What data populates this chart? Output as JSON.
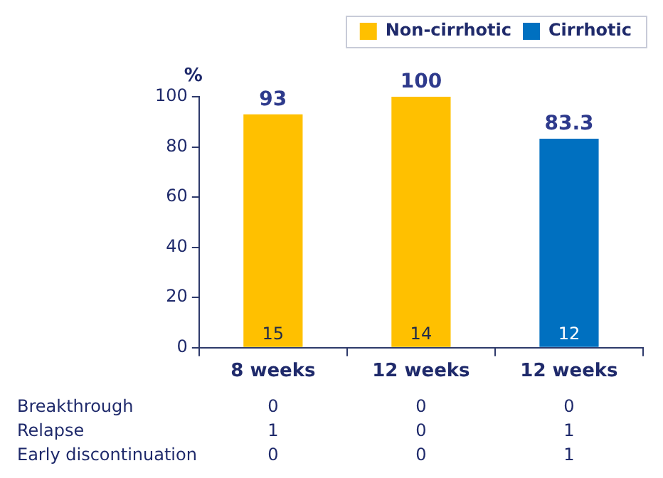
{
  "chart_data": {
    "type": "bar",
    "ylabel": "%",
    "categories": [
      "8 weeks",
      "12 weeks",
      "12 weeks"
    ],
    "series": [
      {
        "name": "Non-cirrhotic",
        "color": "#ffc000",
        "values": [
          93,
          100,
          null
        ]
      },
      {
        "name": "Cirrhotic",
        "color": "#0070c0",
        "values": [
          null,
          null,
          83.3
        ]
      }
    ],
    "ylim": [
      0,
      100
    ],
    "yticks": [
      0,
      20,
      40,
      60,
      80,
      100
    ],
    "grid": false,
    "legend": "top",
    "data_labels": true,
    "annotations": [
      "15",
      "14",
      "12",
      "Breakthrough",
      "0",
      "0",
      "0",
      "Relapse",
      "1",
      "0",
      "1",
      "Early discontinuation",
      "0",
      "0",
      "1"
    ]
  }
}
